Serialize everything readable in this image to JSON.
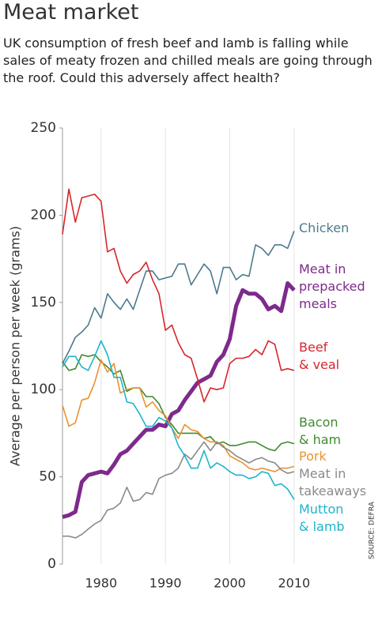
{
  "chart_data": {
    "type": "line",
    "title": "Meat market",
    "subtitle": "UK consumption of fresh beef and lamb is falling while sales of meaty frozen and chilled meals are going through the roof. Could this adversely affect health?",
    "ylabel": "Average per person per week (grams)",
    "source": "SOURCE: DEFRA",
    "x": [
      1974,
      1975,
      1976,
      1977,
      1978,
      1979,
      1980,
      1981,
      1982,
      1983,
      1984,
      1985,
      1986,
      1987,
      1988,
      1989,
      1990,
      1991,
      1992,
      1993,
      1994,
      1995,
      1996,
      1997,
      1998,
      1999,
      2000,
      2001,
      2002,
      2003,
      2004,
      2005,
      2006,
      2007,
      2008,
      2009,
      2010
    ],
    "xlim": [
      1974,
      2011
    ],
    "xticks": [
      1980,
      1990,
      2000,
      2010
    ],
    "ylim": [
      0,
      250
    ],
    "yticks": [
      0,
      50,
      100,
      150,
      200,
      250
    ],
    "grid": "x",
    "series": [
      {
        "name": "Chicken",
        "color": "#4b7a8d",
        "values": [
          115,
          122,
          130,
          133,
          137,
          147,
          141,
          155,
          150,
          146,
          152,
          146,
          157,
          168,
          168,
          163,
          164,
          165,
          172,
          172,
          160,
          166,
          172,
          168,
          155,
          170,
          170,
          163,
          166,
          165,
          183,
          181,
          177,
          183,
          183,
          181,
          191
        ]
      },
      {
        "name": "Meat in\nprepacked\nmeals",
        "color": "#7d2a8c",
        "values": [
          27,
          28,
          30,
          47,
          51,
          52,
          53,
          52,
          57,
          63,
          65,
          69,
          73,
          77,
          77,
          80,
          79,
          86,
          88,
          94,
          99,
          104,
          106,
          108,
          116,
          120,
          129,
          148,
          157,
          155,
          155,
          152,
          146,
          148,
          145,
          161,
          157
        ]
      },
      {
        "name": "Beef\n& veal",
        "color": "#d7262b",
        "values": [
          189,
          215,
          196,
          210,
          211,
          212,
          208,
          179,
          181,
          168,
          161,
          166,
          168,
          173,
          163,
          155,
          134,
          137,
          127,
          120,
          118,
          106,
          93,
          101,
          100,
          101,
          115,
          118,
          118,
          119,
          123,
          120,
          128,
          126,
          111,
          112,
          111
        ]
      },
      {
        "name": "Bacon\n& ham",
        "color": "#3f8a2c",
        "values": [
          116,
          111,
          112,
          120,
          119,
          120,
          116,
          113,
          109,
          111,
          99,
          101,
          101,
          96,
          96,
          92,
          84,
          80,
          75,
          75,
          75,
          75,
          72,
          73,
          69,
          70,
          68,
          68,
          69,
          70,
          70,
          68,
          66,
          65,
          69,
          70,
          69
        ]
      },
      {
        "name": "Pork",
        "color": "#ea9230",
        "values": [
          91,
          79,
          81,
          94,
          95,
          104,
          117,
          110,
          115,
          98,
          100,
          101,
          101,
          90,
          93,
          88,
          85,
          78,
          72,
          80,
          77,
          76,
          72,
          70,
          70,
          68,
          62,
          60,
          58,
          55,
          54,
          55,
          54,
          53,
          55,
          55,
          56
        ]
      },
      {
        "name": "Meat in\ntakeaways",
        "color": "#8a8a8a",
        "values": [
          16,
          16,
          15,
          17,
          20,
          23,
          25,
          31,
          32,
          35,
          44,
          36,
          37,
          41,
          40,
          49,
          51,
          52,
          55,
          63,
          60,
          65,
          70,
          65,
          70,
          67,
          65,
          62,
          60,
          58,
          60,
          61,
          59,
          58,
          54,
          52,
          53
        ]
      },
      {
        "name": "Mutton\n& lamb",
        "color": "#1db4cd",
        "values": [
          113,
          119,
          119,
          113,
          111,
          119,
          128,
          120,
          107,
          107,
          93,
          92,
          86,
          79,
          79,
          84,
          82,
          78,
          68,
          62,
          55,
          55,
          65,
          55,
          58,
          56,
          53,
          51,
          51,
          49,
          50,
          53,
          52,
          45,
          46,
          43,
          37
        ]
      }
    ]
  }
}
